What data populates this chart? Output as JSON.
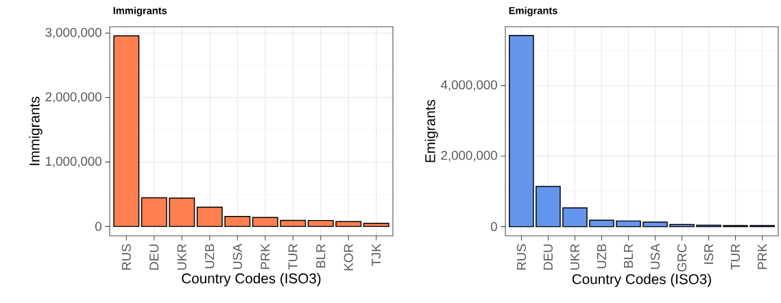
{
  "chart_data": [
    {
      "type": "bar",
      "title": "Immigrants",
      "xlabel": "Country Codes (ISO3)",
      "ylabel": "Immigrants",
      "categories": [
        "RUS",
        "DEU",
        "UKR",
        "UZB",
        "USA",
        "PRK",
        "TUR",
        "BLR",
        "KOR",
        "TJK"
      ],
      "values": [
        2960000,
        445000,
        440000,
        300000,
        155000,
        140000,
        95000,
        93000,
        75000,
        50000
      ],
      "color": "#ff7f50",
      "ylim": [
        -145000,
        3100000
      ],
      "yticks": [
        {
          "value": 0,
          "label": "0"
        },
        {
          "value": 1000000,
          "label": "1,000,000"
        },
        {
          "value": 2000000,
          "label": "2,000,000"
        },
        {
          "value": 3000000,
          "label": "3,000,000"
        }
      ],
      "grid": true
    },
    {
      "type": "bar",
      "title": "Emigrants",
      "xlabel": "Country Codes (ISO3)",
      "ylabel": "Emigrants",
      "categories": [
        "RUS",
        "DEU",
        "UKR",
        "UZB",
        "BLR",
        "USA",
        "GRC",
        "ISR",
        "TUR",
        "PRK"
      ],
      "values": [
        5420000,
        1140000,
        530000,
        180000,
        160000,
        130000,
        60000,
        40000,
        30000,
        30000
      ],
      "color": "#6495ed",
      "ylim": [
        -260000,
        5670000
      ],
      "yticks": [
        {
          "value": 0,
          "label": "0"
        },
        {
          "value": 2000000,
          "label": "2,000,000"
        },
        {
          "value": 4000000,
          "label": "4,000,000"
        }
      ],
      "grid": true
    }
  ]
}
